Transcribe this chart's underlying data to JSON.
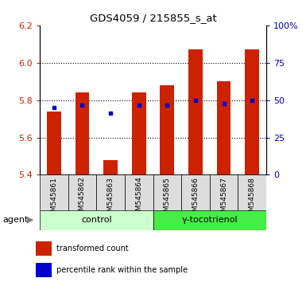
{
  "title": "GDS4059 / 215855_s_at",
  "samples": [
    "GSM545861",
    "GSM545862",
    "GSM545863",
    "GSM545864",
    "GSM545865",
    "GSM545866",
    "GSM545867",
    "GSM545868"
  ],
  "red_values": [
    5.74,
    5.84,
    5.48,
    5.84,
    5.88,
    6.07,
    5.9,
    6.07
  ],
  "blue_values": [
    5.76,
    5.775,
    5.73,
    5.775,
    5.775,
    5.8,
    5.78,
    5.8
  ],
  "bar_bottom": 5.4,
  "ylim": [
    5.4,
    6.2
  ],
  "y2lim": [
    0,
    100
  ],
  "yticks": [
    5.4,
    5.6,
    5.8,
    6.0,
    6.2
  ],
  "y2ticks": [
    0,
    25,
    50,
    75,
    100
  ],
  "y2ticklabels": [
    "0",
    "25",
    "50",
    "75",
    "100%"
  ],
  "control_samples": [
    0,
    1,
    2,
    3
  ],
  "treatment_samples": [
    4,
    5,
    6,
    7
  ],
  "control_label": "control",
  "treatment_label": "γ-tocotrienol",
  "agent_label": "agent",
  "legend_red": "transformed count",
  "legend_blue": "percentile rank within the sample",
  "red_color": "#cc2200",
  "blue_color": "#0000cc",
  "control_bg_light": "#ccffcc",
  "treatment_bg": "#44ee44",
  "tick_bg": "#dddddd",
  "bar_width": 0.5,
  "figsize": [
    3.85,
    3.54
  ],
  "dpi": 100
}
